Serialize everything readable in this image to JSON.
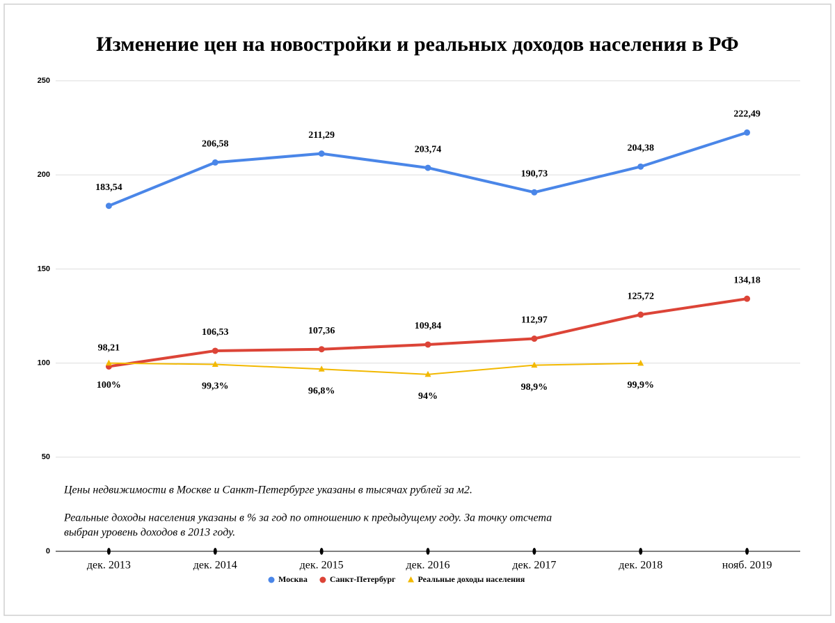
{
  "chart_data": {
    "type": "line",
    "title": "Изменение цен на новостройки и реальных доходов населения в РФ",
    "categories": [
      "дек. 2013",
      "дек. 2014",
      "дек. 2015",
      "дек. 2016",
      "дек. 2017",
      "дек. 2018",
      "нояб. 2019"
    ],
    "series": [
      {
        "name": "Москва",
        "color": "#4a86e8",
        "marker": "circle",
        "values": [
          183.54,
          206.58,
          211.29,
          203.74,
          190.73,
          204.38,
          222.49
        ],
        "value_labels": [
          "183,54",
          "206,58",
          "211,29",
          "203,74",
          "190,73",
          "204,38",
          "222,49"
        ]
      },
      {
        "name": "Санкт-Петербург",
        "color": "#dc4437",
        "marker": "circle",
        "values": [
          98.21,
          106.53,
          107.36,
          109.84,
          112.97,
          125.72,
          134.18
        ],
        "value_labels": [
          "98,21",
          "106,53",
          "107,36",
          "109,84",
          "112,97",
          "125,72",
          "134,18"
        ]
      },
      {
        "name": "Реальные доходы населения",
        "color": "#f2b800",
        "marker": "triangle",
        "values": [
          100,
          99.3,
          96.8,
          94,
          98.9,
          99.9,
          null
        ],
        "value_labels": [
          "100%",
          "99,3%",
          "96,8%",
          "94%",
          "98,9%",
          "99,9%",
          null
        ]
      }
    ],
    "ylim": [
      0,
      250
    ],
    "yticks": [
      0,
      50,
      100,
      150,
      200,
      250
    ],
    "grid": true,
    "legend": "bottom",
    "notes": [
      "Цены недвижимости в Москве и Санкт-Петербурге указаны в тысячах рублей за м2.",
      "Реальные доходы населения указаны в % за год по отношению к предыдущему году. За точку отсчета",
      "выбран уровень доходов в 2013 году."
    ]
  }
}
